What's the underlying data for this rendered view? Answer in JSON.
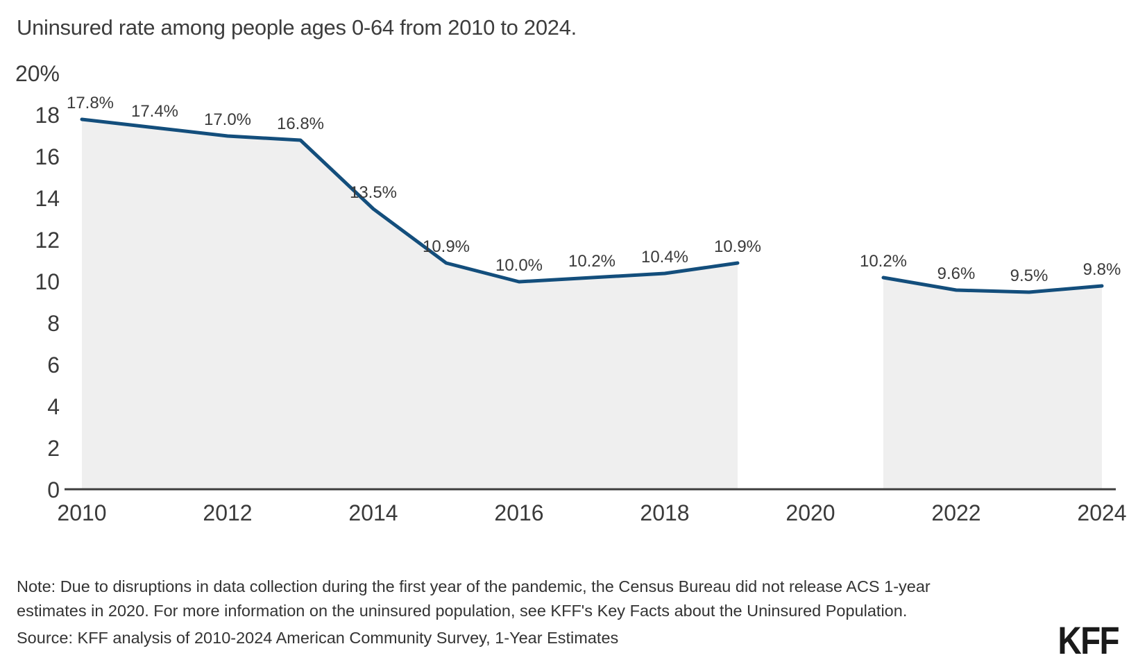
{
  "title": "Uninsured rate among people ages 0-64 from 2010 to 2024.",
  "note": "Note: Due to disruptions in data collection during the first year of the pandemic, the Census Bureau did not release ACS 1-year estimates in 2020. For more information on the uninsured population, see KFF's Key Facts about the Uninsured Population.",
  "source": "Source: KFF analysis of 2010-2024 American Community Survey, 1-Year Estimates",
  "logo_text": "KFF",
  "colors": {
    "line": "#134E7C",
    "area_fill": "#EFEFEF",
    "axis": "#3d3d3d",
    "text": "#3a3a3a",
    "background": "#ffffff"
  },
  "chart_data": {
    "type": "area",
    "title": "Uninsured rate among people ages 0-64 from 2010 to 2024.",
    "x": [
      2010,
      2011,
      2012,
      2013,
      2014,
      2015,
      2016,
      2017,
      2018,
      2019,
      2020,
      2021,
      2022,
      2023,
      2024
    ],
    "series": [
      {
        "name": "Uninsured rate (%)",
        "values": [
          17.8,
          17.4,
          17.0,
          16.8,
          13.5,
          10.9,
          10.0,
          10.2,
          10.4,
          10.9,
          null,
          10.2,
          9.6,
          9.5,
          9.8
        ]
      }
    ],
    "point_labels": [
      "17.8%",
      "17.4%",
      "17.0%",
      "16.8%",
      "13.5%",
      "10.9%",
      "10.0%",
      "10.2%",
      "10.4%",
      "10.9%",
      null,
      "10.2%",
      "9.6%",
      "9.5%",
      "9.8%"
    ],
    "x_ticks": [
      2010,
      2012,
      2014,
      2016,
      2018,
      2020,
      2022,
      2024
    ],
    "y_ticks": [
      {
        "v": 0,
        "label": "0"
      },
      {
        "v": 2,
        "label": "2"
      },
      {
        "v": 4,
        "label": "4"
      },
      {
        "v": 6,
        "label": "6"
      },
      {
        "v": 8,
        "label": "8"
      },
      {
        "v": 10,
        "label": "10"
      },
      {
        "v": 12,
        "label": "12"
      },
      {
        "v": 14,
        "label": "14"
      },
      {
        "v": 16,
        "label": "16"
      },
      {
        "v": 18,
        "label": "18"
      },
      {
        "v": 20,
        "label": "20%"
      }
    ],
    "ylim": [
      0,
      20
    ],
    "xlabel": "",
    "ylabel": "",
    "grid": false,
    "legend": "none",
    "gap_years": [
      2020
    ]
  }
}
